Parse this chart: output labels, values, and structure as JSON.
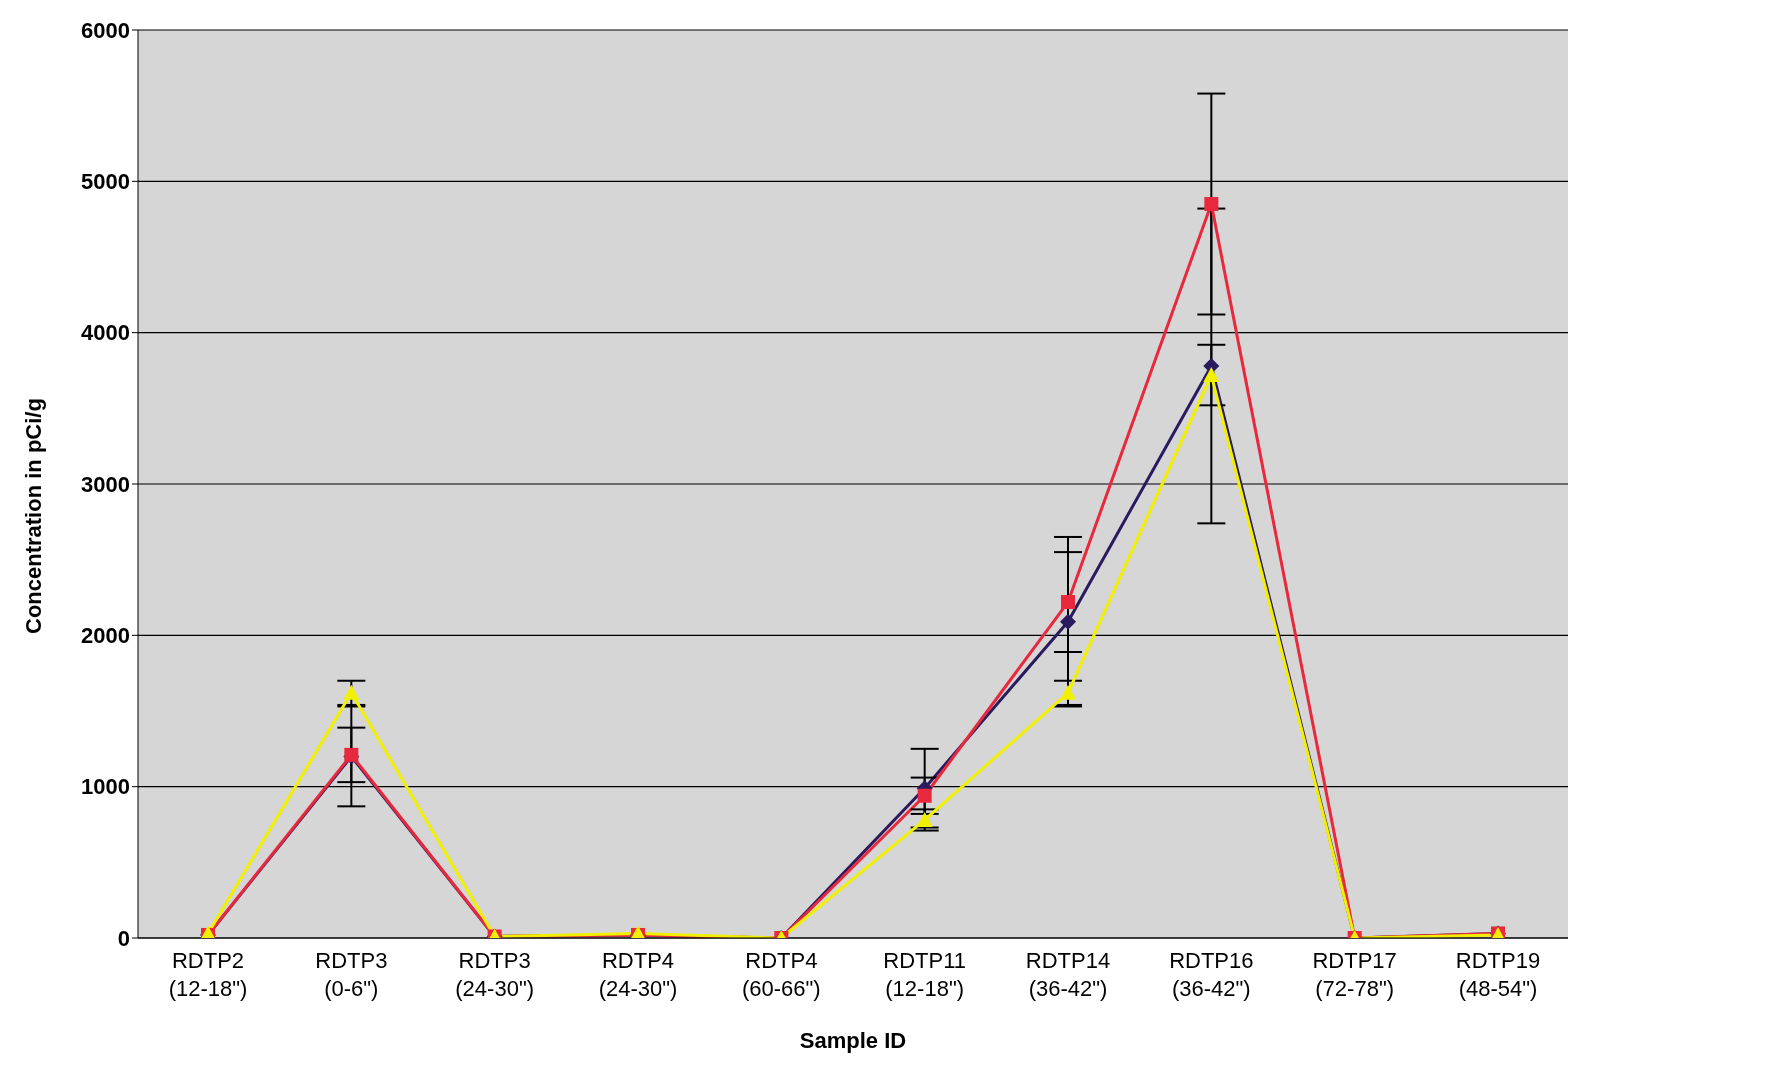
{
  "chart_data": {
    "type": "line",
    "xlabel": "Sample ID",
    "ylabel": "Concentration in pCi/g",
    "categories": [
      "RDTP2 (12-18\")",
      "RDTP3 (0-6\")",
      "RDTP3 (24-30\")",
      "RDTP4 (24-30\")",
      "RDTP4 (60-66\")",
      "RDTP11 (12-18\")",
      "RDTP14 (36-42\")",
      "RDTP16 (36-42\")",
      "RDTP17 (72-78\")",
      "RDTP19 (48-54\")"
    ],
    "series": [
      {
        "color": "#2a1a5e",
        "marker": "diamond",
        "values": [
          20,
          1200,
          10,
          20,
          0,
          990,
          2090,
          3780,
          0,
          30
        ],
        "errors": [
          null,
          330,
          null,
          null,
          null,
          260,
          560,
          1040,
          null,
          null
        ]
      },
      {
        "color": "#e8283c",
        "marker": "square",
        "values": [
          20,
          1210,
          10,
          20,
          0,
          940,
          2220,
          4850,
          0,
          30
        ],
        "errors": [
          null,
          180,
          null,
          null,
          null,
          120,
          330,
          730,
          null,
          null
        ]
      },
      {
        "color": "#f0f000",
        "marker": "triangle",
        "values": [
          30,
          1620,
          10,
          30,
          0,
          780,
          1620,
          3720,
          0,
          20
        ],
        "errors": [
          null,
          80,
          null,
          null,
          null,
          70,
          80,
          200,
          null,
          null
        ]
      }
    ],
    "ylim": [
      0,
      6000
    ],
    "yticks": [
      0,
      1000,
      2000,
      3000,
      4000,
      5000,
      6000
    ],
    "grid": "y",
    "legend": false
  }
}
